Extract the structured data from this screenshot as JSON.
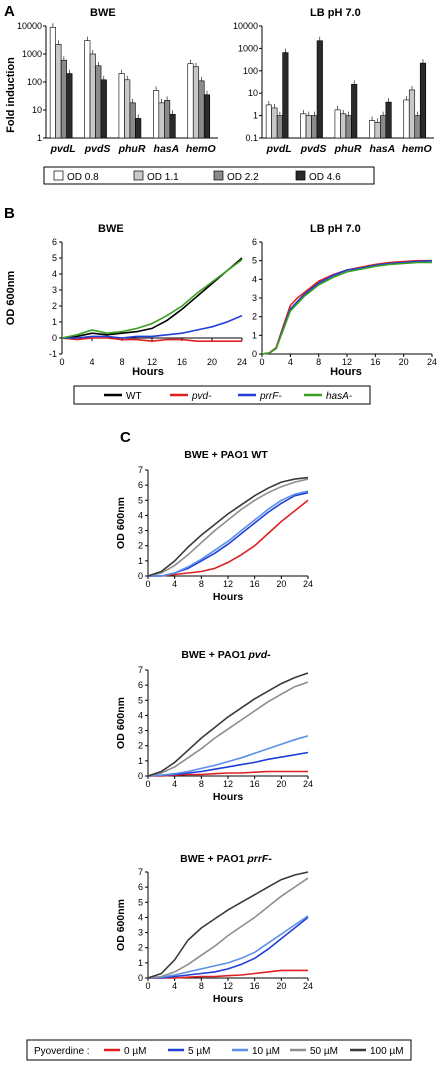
{
  "panels": {
    "A": {
      "letter": "A",
      "ylabel": "Fold induction",
      "left_title": "BWE",
      "right_title": "LB pH 7.0",
      "left_yticks": [
        "10000",
        "1000",
        "100",
        "10",
        "1"
      ],
      "right_yticks": [
        "10000",
        "1000",
        "100",
        "10",
        "1",
        "0.1"
      ],
      "legend": [
        "OD 0.8",
        "OD 1.1",
        "OD 2.2",
        "OD 4.6"
      ],
      "series_colors": [
        "#ffffff",
        "#c8c8c8",
        "#8a8a8a",
        "#2a2a2a"
      ]
    },
    "B": {
      "letter": "B",
      "ylabel": "OD 600nm",
      "left_title": "BWE",
      "right_title": "LB pH 7.0",
      "xlabel": "Hours",
      "left_yticks": [
        "6",
        "5",
        "4",
        "3",
        "2",
        "1",
        "0",
        "-1"
      ],
      "right_yticks": [
        "6",
        "5",
        "4",
        "3",
        "2",
        "1",
        "0"
      ],
      "xticks": [
        "0",
        "4",
        "8",
        "12",
        "16",
        "20",
        "24"
      ],
      "legend": [
        {
          "label": "WT",
          "color": "#000000",
          "italic": false
        },
        {
          "label": "pvd-",
          "color": "#e02020",
          "italic": true
        },
        {
          "label": "prrF-",
          "color": "#1f3fd8",
          "italic": true
        },
        {
          "label": "hasA-",
          "color": "#3aa020",
          "italic": true
        }
      ]
    },
    "C": {
      "letter": "C",
      "ylabel": "OD 600nm",
      "xlabel": "Hours",
      "titles": [
        "BWE + PAO1 WT",
        "BWE + PAO1 ",
        "BWE + PAO1 "
      ],
      "title_italic": [
        "",
        "pvd-",
        "prrF-"
      ],
      "yticks": [
        "7",
        "6",
        "5",
        "4",
        "3",
        "2",
        "1",
        "0"
      ],
      "xticks": [
        "0",
        "4",
        "8",
        "12",
        "16",
        "20",
        "24"
      ],
      "legend_title": "Pyoverdine :",
      "legend": [
        {
          "label": "0 µM",
          "color": "#e02020"
        },
        {
          "label": "5 µM",
          "color": "#1f3fd8"
        },
        {
          "label": "10 µM",
          "color": "#5b8fe8"
        },
        {
          "label": "50 µM",
          "color": "#8e8e8e"
        },
        {
          "label": "100 µM",
          "color": "#3a3a3a"
        }
      ]
    }
  },
  "chart_data": [
    {
      "type": "bar",
      "title": "BWE",
      "ylabel": "Fold induction",
      "yscale": "log",
      "ylim": [
        1,
        10000
      ],
      "categories": [
        "pvdL",
        "pvdS",
        "phuR",
        "hasA",
        "hemO"
      ],
      "series": [
        {
          "name": "OD 0.8",
          "values": [
            9000,
            3000,
            200,
            50,
            450
          ]
        },
        {
          "name": "OD 1.1",
          "values": [
            2200,
            1000,
            120,
            18,
            350
          ]
        },
        {
          "name": "OD 2.2",
          "values": [
            600,
            380,
            18,
            22,
            110
          ]
        },
        {
          "name": "OD 4.6",
          "values": [
            200,
            120,
            5,
            7,
            35
          ]
        }
      ]
    },
    {
      "type": "bar",
      "title": "LB pH 7.0",
      "yscale": "log",
      "ylim": [
        0.1,
        10000
      ],
      "categories": [
        "pvdL",
        "pvdS",
        "phuR",
        "hasA",
        "hemO"
      ],
      "series": [
        {
          "name": "OD 0.8",
          "values": [
            3,
            1.2,
            1.8,
            0.6,
            5
          ]
        },
        {
          "name": "OD 1.1",
          "values": [
            2.2,
            1.0,
            1.2,
            0.5,
            14
          ]
        },
        {
          "name": "OD 2.2",
          "values": [
            1.0,
            1.0,
            1.0,
            1.0,
            1.0
          ]
        },
        {
          "name": "OD 4.6",
          "values": [
            650,
            2200,
            25,
            4,
            220
          ]
        }
      ]
    },
    {
      "type": "line",
      "title": "BWE",
      "xlabel": "Hours",
      "ylabel": "OD 600nm",
      "xlim": [
        0,
        24
      ],
      "ylim": [
        -1,
        6
      ],
      "x": [
        0,
        2,
        4,
        6,
        8,
        10,
        12,
        14,
        16,
        18,
        20,
        22,
        24
      ],
      "series": [
        {
          "name": "WT",
          "values": [
            0,
            0.1,
            0.3,
            0.2,
            0.3,
            0.4,
            0.6,
            1.1,
            1.8,
            2.6,
            3.4,
            4.2,
            5.0
          ]
        },
        {
          "name": "pvd-",
          "values": [
            0,
            -0.1,
            0,
            0,
            -0.1,
            -0.1,
            -0.2,
            -0.1,
            -0.1,
            -0.2,
            -0.2,
            -0.2,
            -0.2
          ]
        },
        {
          "name": "prrF-",
          "values": [
            0,
            0,
            0.1,
            0.1,
            0,
            0.1,
            0.1,
            0.2,
            0.3,
            0.5,
            0.7,
            1.0,
            1.4
          ]
        },
        {
          "name": "hasA-",
          "values": [
            0,
            0.2,
            0.5,
            0.3,
            0.4,
            0.6,
            0.9,
            1.4,
            2.0,
            2.8,
            3.5,
            4.2,
            4.9
          ]
        }
      ]
    },
    {
      "type": "line",
      "title": "LB pH 7.0",
      "xlabel": "Hours",
      "xlim": [
        0,
        24
      ],
      "ylim": [
        0,
        6
      ],
      "x": [
        0,
        1,
        2,
        3,
        4,
        5,
        6,
        8,
        10,
        12,
        14,
        16,
        18,
        20,
        22,
        24
      ],
      "series": [
        {
          "name": "WT",
          "values": [
            0,
            0.05,
            0.3,
            1.4,
            2.4,
            2.8,
            3.2,
            3.8,
            4.2,
            4.5,
            4.6,
            4.75,
            4.85,
            4.9,
            4.95,
            5.0
          ]
        },
        {
          "name": "pvd-",
          "values": [
            0,
            0.05,
            0.35,
            1.5,
            2.6,
            3.0,
            3.3,
            3.9,
            4.25,
            4.5,
            4.65,
            4.8,
            4.9,
            4.95,
            5.0,
            5.0
          ]
        },
        {
          "name": "prrF-",
          "values": [
            0,
            0.05,
            0.3,
            1.4,
            2.4,
            2.8,
            3.2,
            3.8,
            4.2,
            4.5,
            4.6,
            4.75,
            4.85,
            4.9,
            4.95,
            5.0
          ]
        },
        {
          "name": "hasA-",
          "values": [
            0,
            0.05,
            0.3,
            1.3,
            2.3,
            2.7,
            3.1,
            3.7,
            4.1,
            4.4,
            4.55,
            4.7,
            4.8,
            4.85,
            4.9,
            4.9
          ]
        }
      ]
    },
    {
      "type": "line",
      "title": "BWE + PAO1 WT",
      "xlabel": "Hours",
      "ylabel": "OD 600nm",
      "xlim": [
        0,
        24
      ],
      "ylim": [
        0,
        7
      ],
      "x": [
        0,
        2,
        4,
        6,
        8,
        10,
        12,
        14,
        16,
        18,
        20,
        22,
        24
      ],
      "series": [
        {
          "name": "0 µM",
          "values": [
            0,
            0,
            0.1,
            0.2,
            0.3,
            0.5,
            0.9,
            1.4,
            2.0,
            2.8,
            3.6,
            4.3,
            5.0
          ]
        },
        {
          "name": "5 µM",
          "values": [
            0,
            0,
            0.2,
            0.5,
            1.0,
            1.5,
            2.1,
            2.8,
            3.5,
            4.2,
            4.8,
            5.3,
            5.5
          ]
        },
        {
          "name": "10 µM",
          "values": [
            0,
            0,
            0.2,
            0.6,
            1.1,
            1.7,
            2.3,
            3.0,
            3.7,
            4.4,
            5.0,
            5.4,
            5.6
          ]
        },
        {
          "name": "50 µM",
          "values": [
            0,
            0.2,
            0.7,
            1.4,
            2.2,
            3.0,
            3.7,
            4.4,
            5.0,
            5.5,
            5.9,
            6.2,
            6.4
          ]
        },
        {
          "name": "100 µM",
          "values": [
            0,
            0.3,
            1.0,
            1.9,
            2.7,
            3.4,
            4.1,
            4.7,
            5.3,
            5.8,
            6.2,
            6.4,
            6.5
          ]
        }
      ]
    },
    {
      "type": "line",
      "title": "BWE + PAO1 pvd-",
      "xlabel": "Hours",
      "ylabel": "OD 600nm",
      "xlim": [
        0,
        24
      ],
      "ylim": [
        0,
        7
      ],
      "x": [
        0,
        2,
        4,
        6,
        8,
        10,
        12,
        14,
        16,
        18,
        20,
        22,
        24
      ],
      "series": [
        {
          "name": "0 µM",
          "values": [
            0,
            0,
            0.05,
            0.1,
            0.1,
            0.15,
            0.2,
            0.2,
            0.25,
            0.3,
            0.3,
            0.3,
            0.3
          ]
        },
        {
          "name": "5 µM",
          "values": [
            0,
            0.05,
            0.1,
            0.2,
            0.3,
            0.45,
            0.6,
            0.75,
            0.9,
            1.1,
            1.25,
            1.4,
            1.55
          ]
        },
        {
          "name": "10 µM",
          "values": [
            0,
            0.05,
            0.15,
            0.3,
            0.5,
            0.7,
            0.95,
            1.2,
            1.5,
            1.8,
            2.1,
            2.4,
            2.65
          ]
        },
        {
          "name": "50 µM",
          "values": [
            0,
            0.2,
            0.6,
            1.2,
            1.8,
            2.5,
            3.1,
            3.7,
            4.3,
            4.9,
            5.4,
            5.9,
            6.2
          ]
        },
        {
          "name": "100 µM",
          "values": [
            0,
            0.3,
            0.9,
            1.7,
            2.5,
            3.2,
            3.9,
            4.5,
            5.1,
            5.6,
            6.1,
            6.5,
            6.8
          ]
        }
      ]
    },
    {
      "type": "line",
      "title": "BWE + PAO1 prrF-",
      "xlabel": "Hours",
      "ylabel": "OD 600nm",
      "xlim": [
        0,
        24
      ],
      "ylim": [
        0,
        7
      ],
      "x": [
        0,
        2,
        4,
        6,
        8,
        10,
        12,
        14,
        16,
        18,
        20,
        22,
        24
      ],
      "series": [
        {
          "name": "0 µM",
          "values": [
            0,
            0,
            0,
            0.05,
            0.1,
            0.1,
            0.15,
            0.2,
            0.3,
            0.4,
            0.5,
            0.5,
            0.5
          ]
        },
        {
          "name": "5 µM",
          "values": [
            0,
            0,
            0.1,
            0.2,
            0.3,
            0.4,
            0.6,
            0.9,
            1.3,
            1.9,
            2.6,
            3.3,
            4.0
          ]
        },
        {
          "name": "10 µM",
          "values": [
            0,
            0.05,
            0.2,
            0.4,
            0.6,
            0.8,
            1.0,
            1.3,
            1.7,
            2.3,
            2.9,
            3.5,
            4.1
          ]
        },
        {
          "name": "50 µM",
          "values": [
            0,
            0.1,
            0.4,
            0.9,
            1.5,
            2.1,
            2.8,
            3.4,
            4.0,
            4.7,
            5.4,
            6.0,
            6.6
          ]
        },
        {
          "name": "100 µM",
          "values": [
            0,
            0.3,
            1.2,
            2.5,
            3.3,
            3.9,
            4.5,
            5.0,
            5.5,
            6.0,
            6.5,
            6.8,
            7.0
          ]
        }
      ]
    }
  ]
}
